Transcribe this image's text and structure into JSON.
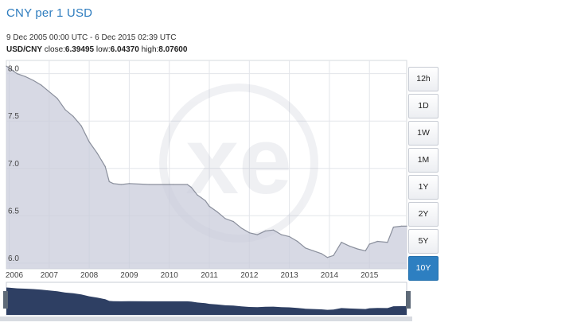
{
  "header": {
    "title": "CNY per 1 USD",
    "date_range": "9 Dec 2005 00:00 UTC - 6 Dec 2015 02:39 UTC",
    "pair": "USD/CNY",
    "close_label": "close:",
    "close_value": "6.39495",
    "low_label": "low:",
    "low_value": "6.04370",
    "high_label": "high:",
    "high_value": "8.07600"
  },
  "range_buttons": [
    {
      "label": "12h",
      "active": false
    },
    {
      "label": "1D",
      "active": false
    },
    {
      "label": "1W",
      "active": false
    },
    {
      "label": "1M",
      "active": false
    },
    {
      "label": "1Y",
      "active": false
    },
    {
      "label": "2Y",
      "active": false
    },
    {
      "label": "5Y",
      "active": false
    },
    {
      "label": "10Y",
      "active": true
    }
  ],
  "colors": {
    "accent": "#2d7fc1",
    "title": "#2f7dbf",
    "line": "#8a8f9c",
    "fill": "#c9ccdb",
    "navigator_fill": "#2e3f63"
  },
  "chart_data": {
    "type": "area",
    "x": [
      2005.93,
      2006.0,
      2006.2,
      2006.4,
      2006.6,
      2006.8,
      2007.0,
      2007.2,
      2007.4,
      2007.6,
      2007.8,
      2008.0,
      2008.2,
      2008.4,
      2008.5,
      2008.6,
      2008.8,
      2009.0,
      2009.5,
      2010.0,
      2010.1,
      2010.45,
      2010.55,
      2010.7,
      2010.9,
      2011.0,
      2011.2,
      2011.4,
      2011.6,
      2011.8,
      2012.0,
      2012.2,
      2012.4,
      2012.6,
      2012.8,
      2013.0,
      2013.2,
      2013.4,
      2013.6,
      2013.8,
      2013.95,
      2014.1,
      2014.3,
      2014.5,
      2014.7,
      2014.9,
      2015.0,
      2015.2,
      2015.45,
      2015.6,
      2015.8,
      2015.93
    ],
    "y": [
      8.08,
      8.06,
      8.0,
      7.97,
      7.93,
      7.88,
      7.81,
      7.74,
      7.62,
      7.55,
      7.45,
      7.28,
      7.16,
      7.02,
      6.86,
      6.84,
      6.83,
      6.84,
      6.83,
      6.83,
      6.83,
      6.83,
      6.8,
      6.72,
      6.66,
      6.6,
      6.54,
      6.47,
      6.44,
      6.37,
      6.32,
      6.3,
      6.34,
      6.35,
      6.3,
      6.28,
      6.23,
      6.16,
      6.13,
      6.1,
      6.06,
      6.08,
      6.22,
      6.18,
      6.15,
      6.13,
      6.2,
      6.23,
      6.22,
      6.38,
      6.39,
      6.39
    ],
    "xticks": [
      "2006",
      "2007",
      "2008",
      "2009",
      "2010",
      "2011",
      "2012",
      "2013",
      "2014",
      "2015"
    ],
    "yticks": [
      "6.0",
      "6.5",
      "7.0",
      "7.5",
      "8.0"
    ],
    "xlim": [
      2005.93,
      2015.93
    ],
    "ylim": [
      5.94,
      8.14
    ],
    "grid": true,
    "series_label": "USD/CNY"
  }
}
